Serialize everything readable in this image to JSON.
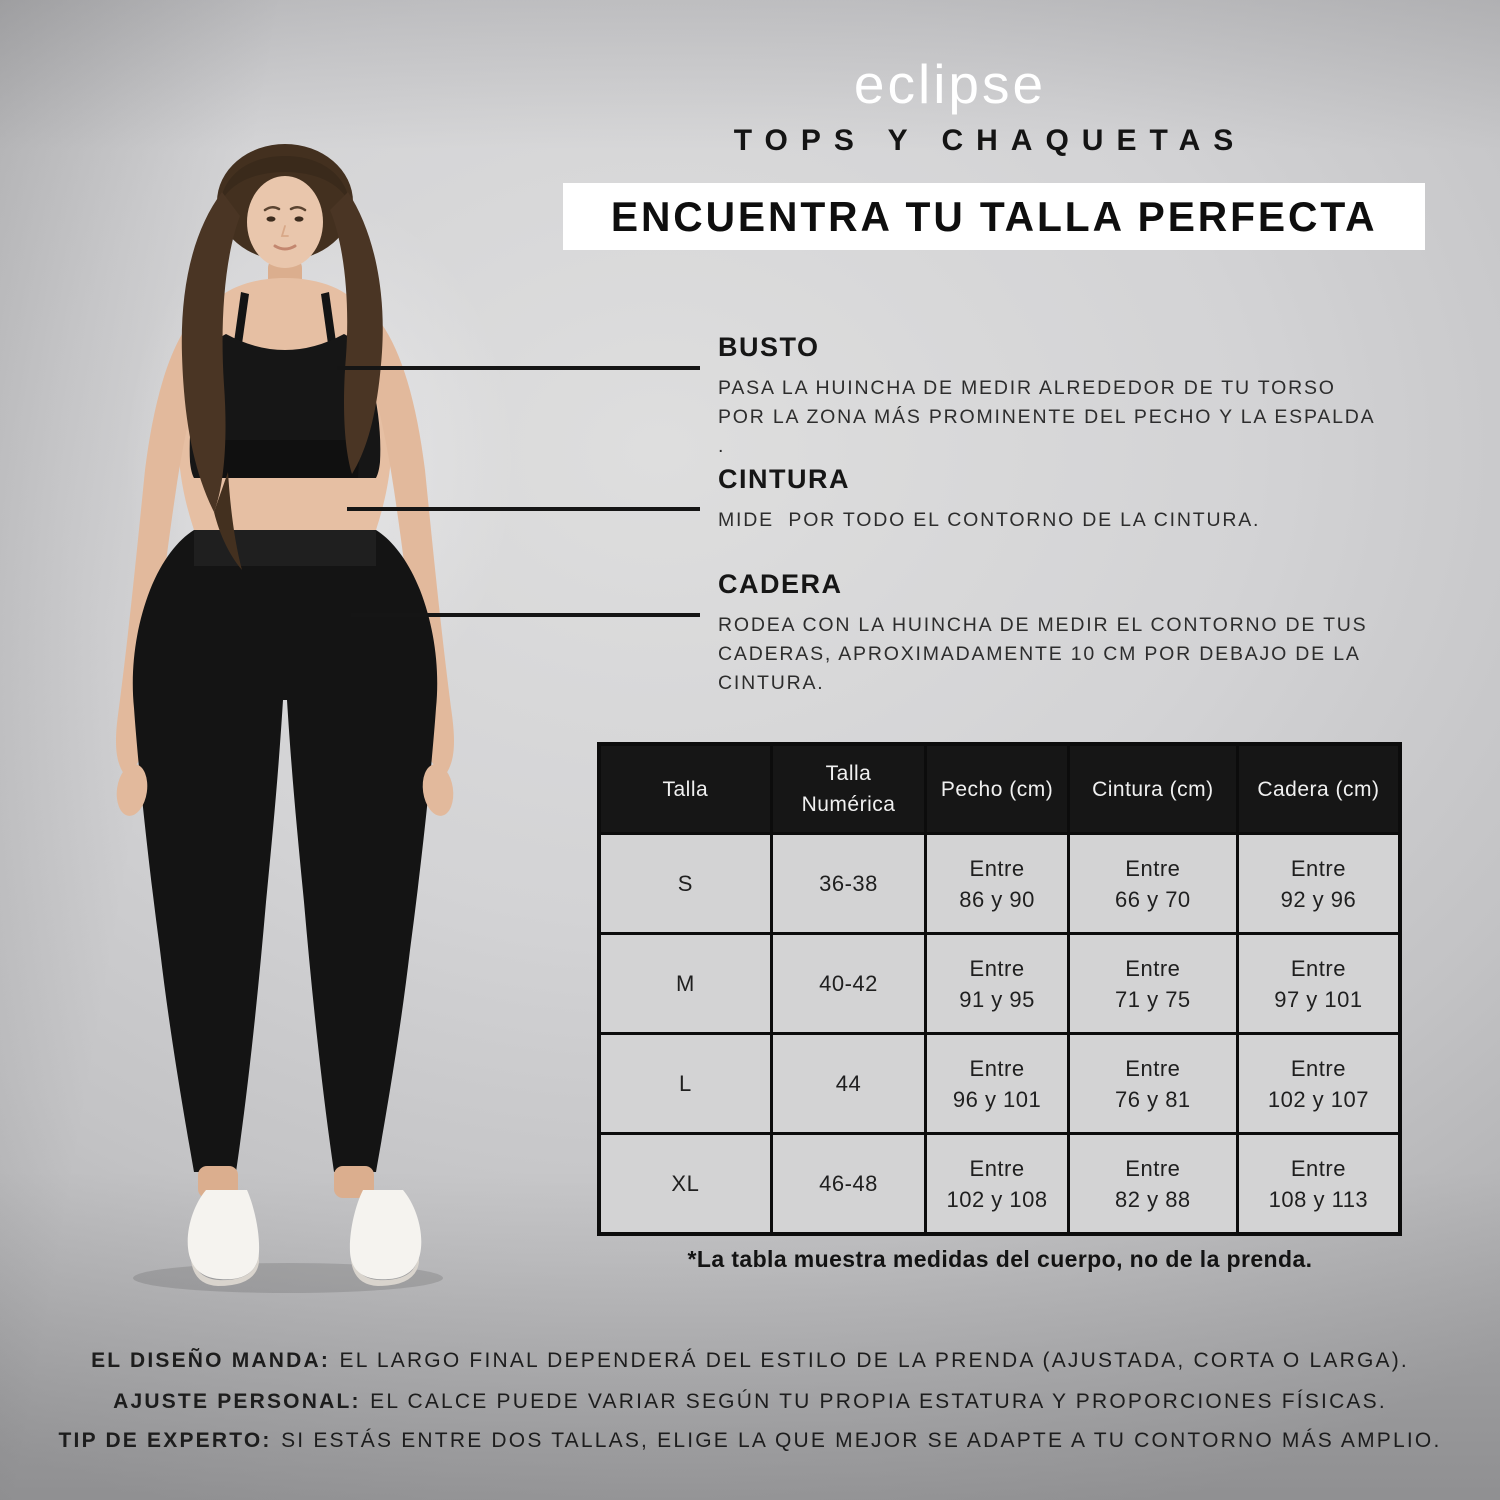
{
  "brand": {
    "logo_text": "eclipse"
  },
  "header": {
    "category": "TOPS Y CHAQUETAS",
    "title": "ENCUENTRA TU TALLA PERFECTA"
  },
  "measurements": [
    {
      "name": "BUSTO",
      "lines": [
        "PASA LA HUINCHA DE MEDIR ALREDEDOR DE TU TORSO",
        "POR LA ZONA MÁS PROMINENTE DEL PECHO Y LA ESPALDA",
        "."
      ]
    },
    {
      "name": "CINTURA",
      "lines": [
        "MIDE  POR TODO EL CONTORNO DE LA CINTURA."
      ]
    },
    {
      "name": "CADERA",
      "lines": [
        "RODEA CON LA HUINCHA DE MEDIR EL CONTORNO DE TUS",
        "CADERAS, APROXIMADAMENTE 10 CM POR DEBAJO DE LA",
        "CINTURA."
      ]
    }
  ],
  "size_table": {
    "headers": [
      [
        "Talla"
      ],
      [
        "Talla",
        "Numérica"
      ],
      [
        "Pecho (cm)"
      ],
      [
        "Cintura (cm)"
      ],
      [
        "Cadera (cm)"
      ]
    ],
    "rows": [
      [
        [
          "S"
        ],
        [
          "36-38"
        ],
        [
          "Entre",
          "86 y 90"
        ],
        [
          "Entre",
          "66 y 70"
        ],
        [
          "Entre",
          "92 y 96"
        ]
      ],
      [
        [
          "M"
        ],
        [
          "40-42"
        ],
        [
          "Entre",
          "91 y 95"
        ],
        [
          "Entre",
          "71 y 75"
        ],
        [
          "Entre",
          "97 y 101"
        ]
      ],
      [
        [
          "L"
        ],
        [
          "44"
        ],
        [
          "Entre",
          "96 y 101"
        ],
        [
          "Entre",
          "76 y 81"
        ],
        [
          "Entre",
          "102 y 107"
        ]
      ],
      [
        [
          "XL"
        ],
        [
          "46-48"
        ],
        [
          "Entre",
          "102 y 108"
        ],
        [
          "Entre",
          "82 y 88"
        ],
        [
          "Entre",
          "108 y 113"
        ]
      ]
    ]
  },
  "footnote": "*La tabla muestra medidas del cuerpo, no de la prenda.",
  "notes": [
    {
      "lead": "EL DISEÑO MANDA:",
      "text": "EL LARGO FINAL DEPENDERÁ DEL ESTILO DE LA PRENDA (AJUSTADA, CORTA O LARGA)."
    },
    {
      "lead": "AJUSTE PERSONAL:",
      "text": "EL CALCE PUEDE VARIAR SEGÚN TU PROPIA ESTATURA Y PROPORCIONES FÍSICAS."
    },
    {
      "lead": "TIP DE EXPERTO:",
      "text": "SI ESTÁS ENTRE DOS TALLAS, ELIGE LA QUE MEJOR SE ADAPTE A TU CONTORNO MÁS AMPLIO."
    }
  ],
  "colors": {
    "banner_bg": "#ffffff",
    "logo_text": "#ffffff",
    "table_header_bg": "#161616",
    "table_cell_bg": "#d3d3d4",
    "annotation_line": "#151515",
    "text": "#1a1a1a"
  }
}
